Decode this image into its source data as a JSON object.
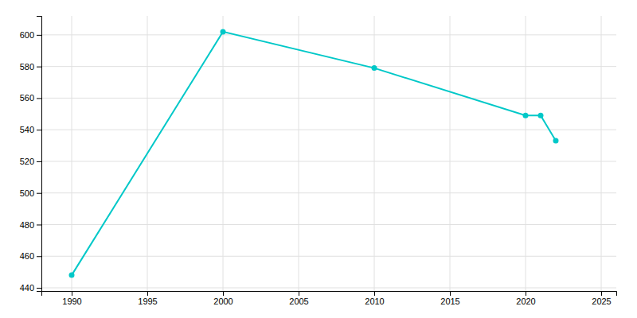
{
  "chart_data": {
    "type": "line",
    "x": [
      1990,
      2000,
      2010,
      2020,
      2021,
      2022
    ],
    "values": [
      448,
      602,
      579,
      549,
      549,
      533
    ],
    "color": "#00c8c8",
    "marker": "circle",
    "xlim": [
      1988,
      2026
    ],
    "ylim": [
      438,
      612
    ],
    "xticks": [
      1990,
      1995,
      2000,
      2005,
      2010,
      2015,
      2020,
      2025
    ],
    "yticks": [
      440,
      460,
      480,
      500,
      520,
      540,
      560,
      580,
      600
    ],
    "grid": true
  }
}
